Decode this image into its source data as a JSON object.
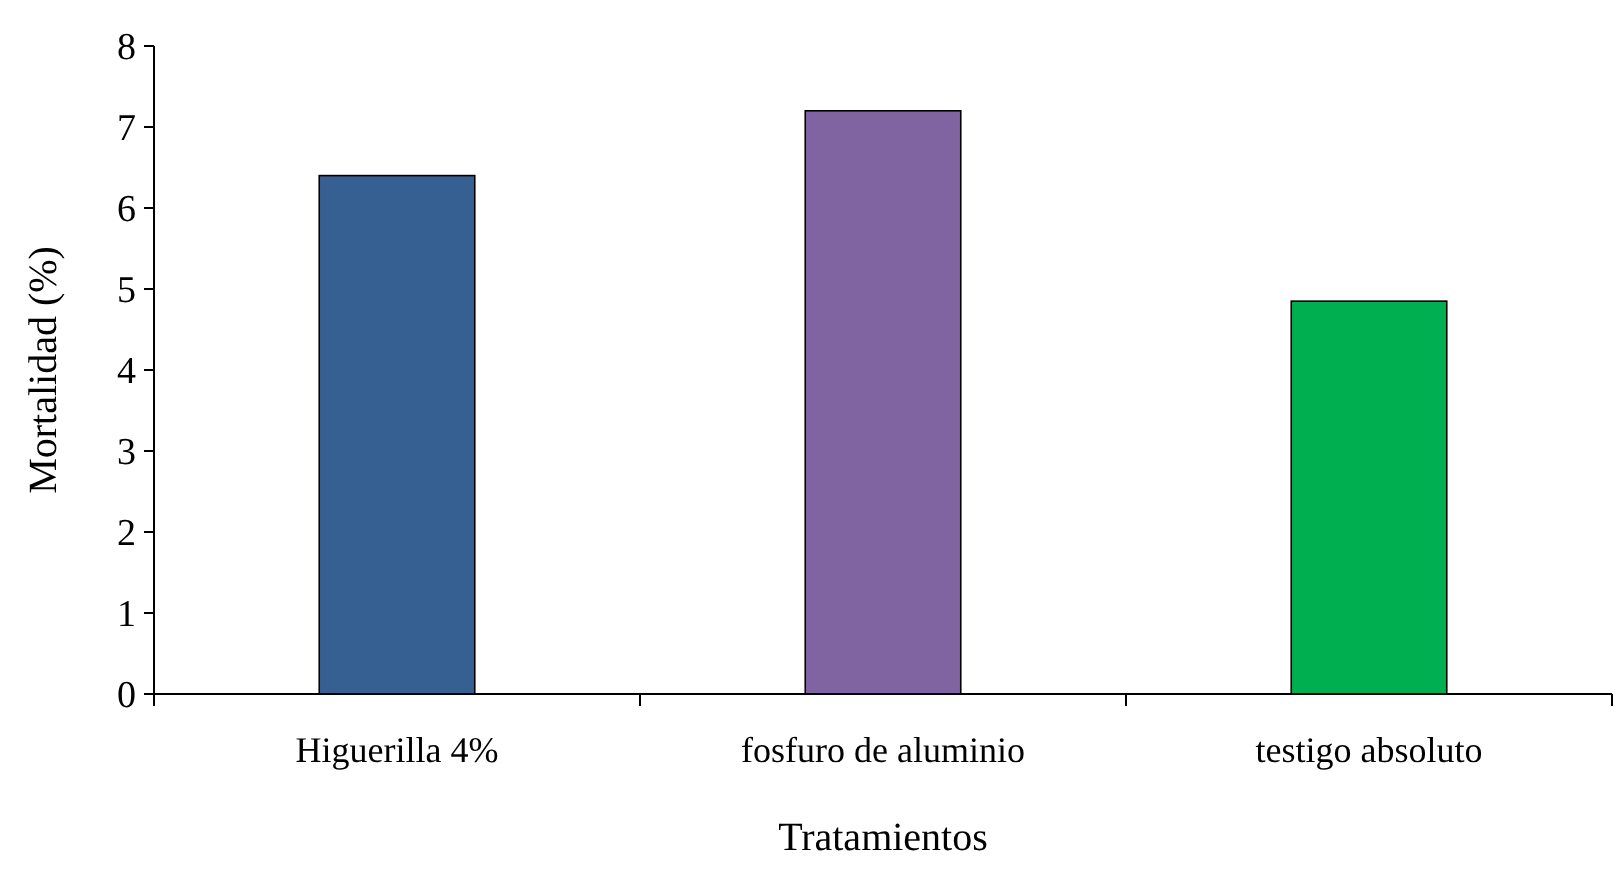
{
  "chart_data": {
    "type": "bar",
    "xlabel": "Tratamientos",
    "ylabel": "Mortalidad (%)",
    "categories": [
      "Higuerilla 4%",
      "fosfuro de aluminio",
      "testigo absoluto"
    ],
    "values": [
      6.4,
      7.2,
      4.85
    ],
    "colors": [
      "#376092",
      "#8064a2",
      "#00b050"
    ],
    "ylim": [
      0,
      8
    ],
    "yticks": [
      0,
      1,
      2,
      3,
      4,
      5,
      6,
      7,
      8
    ]
  }
}
